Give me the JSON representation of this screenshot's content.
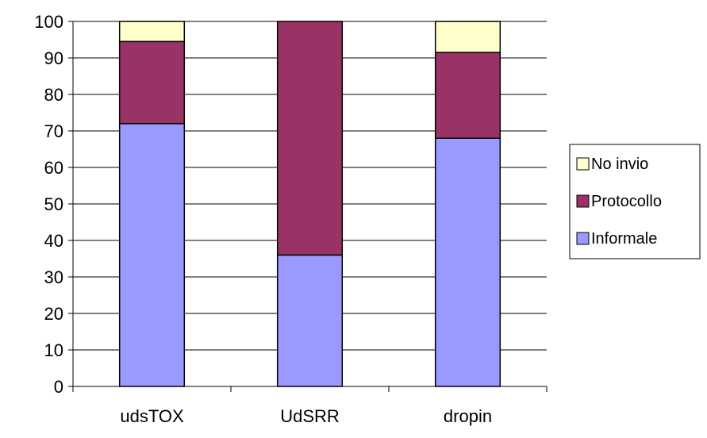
{
  "chart_data": {
    "type": "bar",
    "stacked": true,
    "categories": [
      "udsTOX",
      "UdSRR",
      "dropin"
    ],
    "series": [
      {
        "name": "Informale",
        "values": [
          72,
          36,
          68
        ],
        "color": "#9999ff"
      },
      {
        "name": "Protocollo",
        "values": [
          22.5,
          64,
          23.5
        ],
        "color": "#993366"
      },
      {
        "name": "No invio",
        "values": [
          5.5,
          0,
          8.5
        ],
        "color": "#ffffcc"
      }
    ],
    "ylim": [
      0,
      100
    ],
    "yticks": [
      0,
      10,
      20,
      30,
      40,
      50,
      60,
      70,
      80,
      90,
      100
    ],
    "grid": true,
    "legend_position": "right",
    "legend_order": [
      "No invio",
      "Protocollo",
      "Informale"
    ]
  }
}
